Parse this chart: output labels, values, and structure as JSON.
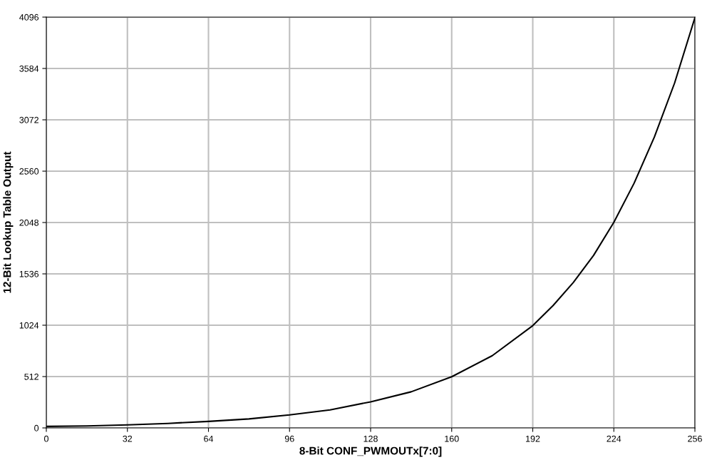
{
  "chart_data": {
    "type": "line",
    "xlabel": "8-Bit CONF_PWMOUTx[7:0]",
    "ylabel": "12-Bit Lookup Table Output",
    "x": [
      0,
      16,
      32,
      48,
      64,
      80,
      96,
      112,
      128,
      144,
      160,
      176,
      192,
      200,
      208,
      216,
      224,
      232,
      240,
      248,
      256
    ],
    "series": [
      {
        "color": "#000000",
        "values": [
          15,
          20,
          30,
          45,
          65,
          90,
          130,
          180,
          260,
          360,
          510,
          720,
          1020,
          1220,
          1450,
          1720,
          2050,
          2440,
          2900,
          3440,
          4090
        ]
      }
    ],
    "xlim": [
      0,
      256
    ],
    "ylim": [
      0,
      4096
    ],
    "xticks": [
      0,
      32,
      64,
      96,
      128,
      160,
      192,
      224,
      256
    ],
    "yticks": [
      0,
      512,
      1024,
      1536,
      2048,
      2560,
      3072,
      3584,
      4096
    ],
    "grid": true,
    "legend": false,
    "marker": "none",
    "line_style": "solid"
  }
}
